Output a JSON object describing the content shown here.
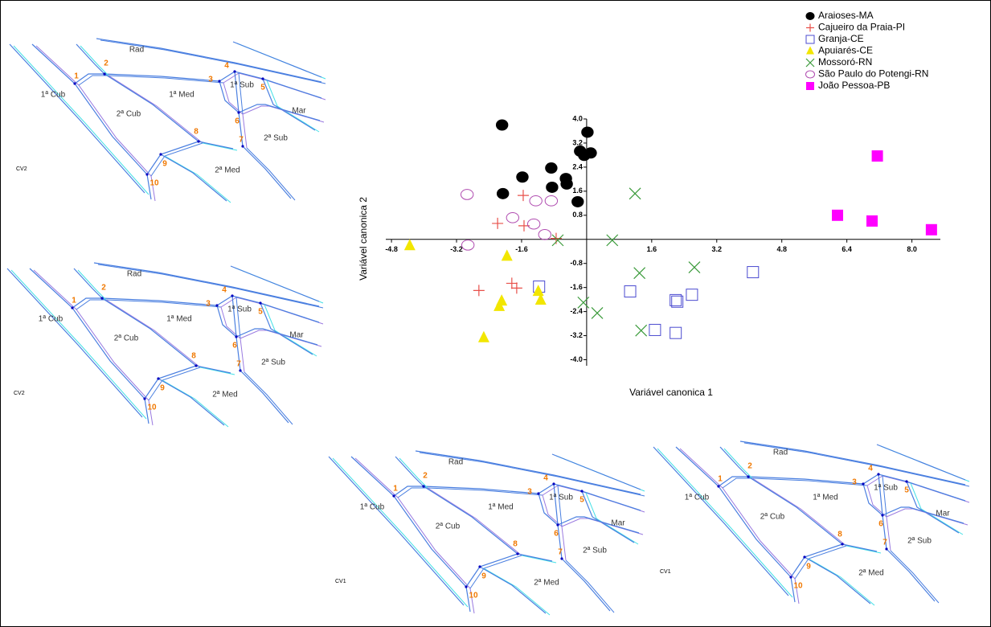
{
  "chart_data": {
    "type": "scatter",
    "xlabel": "Variável canonica 1",
    "ylabel": "Variável canonica 2",
    "xlim": [
      -4.94,
      8.7
    ],
    "ylim": [
      -4.2,
      4.0
    ],
    "xticks": [
      -4.8,
      -3.2,
      -1.6,
      1.6,
      3.2,
      4.8,
      6.4,
      {
        "value": 8,
        "label": "8.0"
      }
    ],
    "yticks": [
      {
        "value": 4,
        "label": "4.0"
      },
      3.2,
      2.4,
      1.6,
      0.8,
      -0.8,
      -1.6,
      -2.4,
      -3.2,
      {
        "value": -4,
        "label": "-4.0"
      }
    ],
    "legend": "top-right",
    "series": [
      {
        "name": "Araioses-MA",
        "color": "#000000",
        "marker": "circle-filled",
        "x": [
          -2.08,
          0.02,
          -0.16,
          0.1,
          -0.06,
          -0.87,
          -1.58,
          -0.51,
          -0.49,
          -0.85,
          -2.06,
          -0.22
        ],
        "values": [
          3.8,
          3.56,
          2.93,
          2.87,
          2.79,
          2.37,
          2.07,
          2.02,
          1.84,
          1.73,
          1.52,
          1.25
        ]
      },
      {
        "name": "Cajueiro da Praia-PI",
        "color": "#e8504a",
        "marker": "plus",
        "x": [
          -1.56,
          -2.19,
          -1.54,
          -0.75,
          -1.84,
          -1.72,
          -2.65
        ],
        "values": [
          1.46,
          0.53,
          0.45,
          0.03,
          -1.46,
          -1.62,
          -1.7
        ]
      },
      {
        "name": "Granja-CE",
        "color": "#4b4bd0",
        "marker": "square-open",
        "x": [
          4.09,
          -1.17,
          1.07,
          2.59,
          2.19,
          2.23,
          1.68,
          2.19
        ],
        "values": [
          -1.09,
          -1.57,
          -1.73,
          -1.84,
          -2.02,
          -2.07,
          -3.01,
          -3.11
        ]
      },
      {
        "name": "Apuiarés-CE",
        "color": "#f2e600",
        "marker": "triangle",
        "x": [
          -4.35,
          -1.96,
          -1.19,
          -1.13,
          -2.09,
          -2.15,
          -2.53
        ],
        "values": [
          -0.21,
          -0.56,
          -1.73,
          -2.02,
          -2.05,
          -2.23,
          -3.27
        ]
      },
      {
        "name": "Mossoró-RN",
        "color": "#3a9a3a",
        "marker": "x",
        "x": [
          1.19,
          0.63,
          -0.71,
          2.65,
          1.3,
          -0.08,
          0.26,
          1.34
        ],
        "values": [
          1.52,
          -0.03,
          -0.03,
          -0.93,
          -1.12,
          -2.1,
          -2.45,
          -3.03
        ]
      },
      {
        "name": "São Paulo do Potengi-RN",
        "color": "#b04cb0",
        "marker": "circle-open",
        "x": [
          -2.94,
          -1.25,
          -0.87,
          -1.82,
          -1.3,
          -1.03,
          -2.92
        ],
        "values": [
          1.49,
          1.28,
          1.28,
          0.72,
          0.51,
          0.16,
          -0.19
        ]
      },
      {
        "name": "João Pessoa-PB",
        "color": "#ff00ff",
        "marker": "square-filled",
        "x": [
          7.15,
          6.17,
          7.02,
          8.48
        ],
        "values": [
          2.77,
          0.8,
          0.61,
          0.32
        ]
      }
    ]
  },
  "wing_panels": [
    {
      "label": "CV2",
      "regions": [
        "Rad",
        "1ª Cub",
        "2ª Cub",
        "1ª Med",
        "1ª Sub",
        "Mar",
        "2ª Sub",
        "2ª Med"
      ],
      "landmarks": [
        "1",
        "2",
        "3",
        "4",
        "5",
        "6",
        "7",
        "8",
        "9",
        "10"
      ]
    },
    {
      "label": "CV2",
      "regions": [
        "Rad",
        "1ª Cub",
        "2ª Cub",
        "1ª Med",
        "1ª Sub",
        "Mar",
        "2ª Sub",
        "2ª Med"
      ],
      "landmarks": [
        "1",
        "2",
        "3",
        "4",
        "5",
        "6",
        "7",
        "8",
        "9",
        "10"
      ]
    },
    {
      "label": "CV1",
      "regions": [
        "Rad",
        "1ª Cub",
        "2ª Cub",
        "1ª Med",
        "1ª Sub",
        "Mar",
        "2ª Sub",
        "2ª Med"
      ],
      "landmarks": [
        "1",
        "2",
        "3",
        "4",
        "5",
        "6",
        "7",
        "8",
        "9",
        "10"
      ]
    },
    {
      "label": "CV1",
      "regions": [
        "Rad",
        "1ª Cub",
        "2ª Cub",
        "1ª Med",
        "1ª Sub",
        "Mar",
        "2ª Sub",
        "2ª Med"
      ],
      "landmarks": [
        "1",
        "2",
        "3",
        "4",
        "5",
        "6",
        "7",
        "8",
        "9",
        "10"
      ]
    }
  ]
}
